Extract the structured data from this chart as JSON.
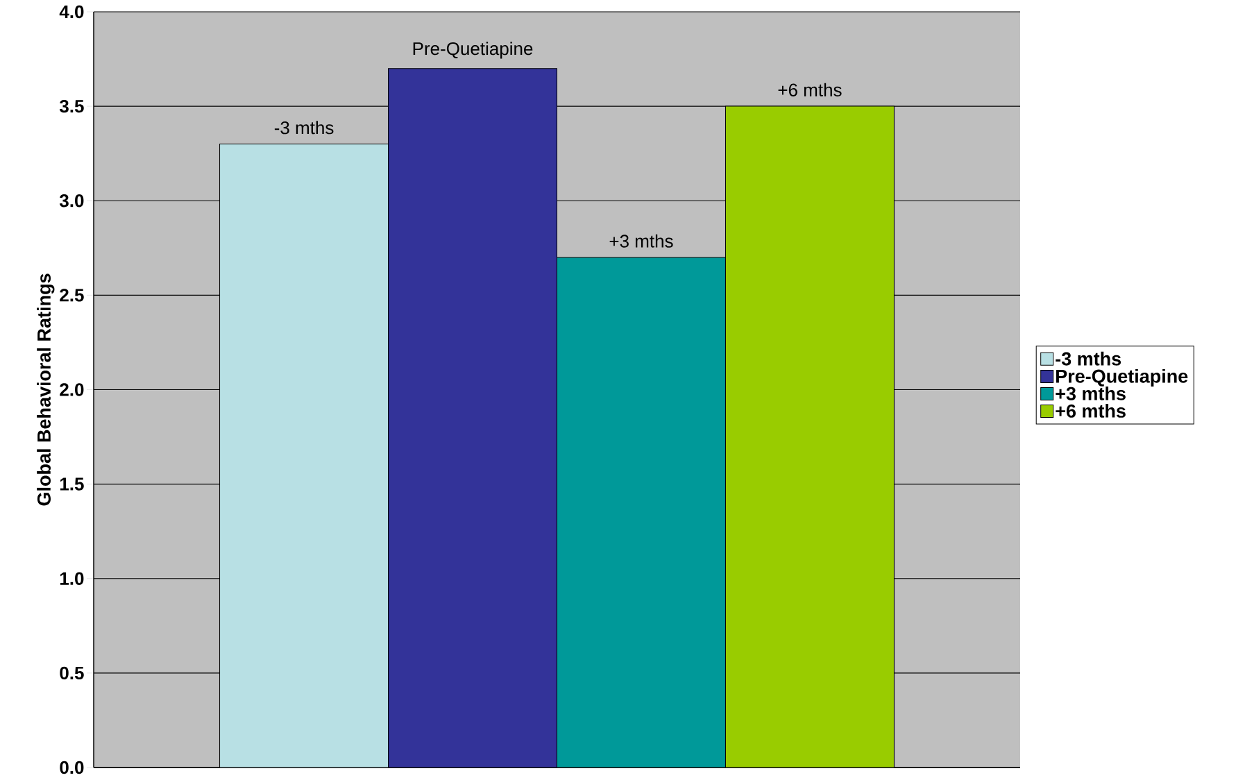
{
  "chart_data": {
    "type": "bar",
    "ylabel": "Global Behavioral Ratings",
    "categories": [
      null
    ],
    "series": [
      {
        "name": "-3 mths",
        "color": "#b8e0e4",
        "values": [
          3.3
        ]
      },
      {
        "name": "Pre-Quetiapine",
        "color": "#333399",
        "values": [
          3.7
        ]
      },
      {
        "name": "+3 mths",
        "color": "#009999",
        "values": [
          2.7
        ]
      },
      {
        "name": "+6 mths",
        "color": "#99cc00",
        "values": [
          3.5
        ]
      }
    ],
    "annotations": [
      {
        "text": "-3 mths",
        "y": 3.3
      },
      {
        "text": "Pre-Quetiapine",
        "y": 3.7
      },
      {
        "text": "+3 mths",
        "y": 2.7
      },
      {
        "text": "+6 mths",
        "y": 3.5
      }
    ],
    "ylim": [
      0,
      4
    ],
    "yticks": [
      {
        "value": 0,
        "label": "0.0"
      },
      {
        "value": 0.5,
        "label": "0.5"
      },
      {
        "value": 1,
        "label": "1.0"
      },
      {
        "value": 1.5,
        "label": "1.5"
      },
      {
        "value": 2,
        "label": "2.0"
      },
      {
        "value": 2.5,
        "label": "2.5"
      },
      {
        "value": 3,
        "label": "3.0"
      },
      {
        "value": 3.5,
        "label": "3.5"
      },
      {
        "value": 4,
        "label": "4.0"
      }
    ],
    "grid": "y",
    "legend": "right",
    "tick_labels": "y"
  }
}
